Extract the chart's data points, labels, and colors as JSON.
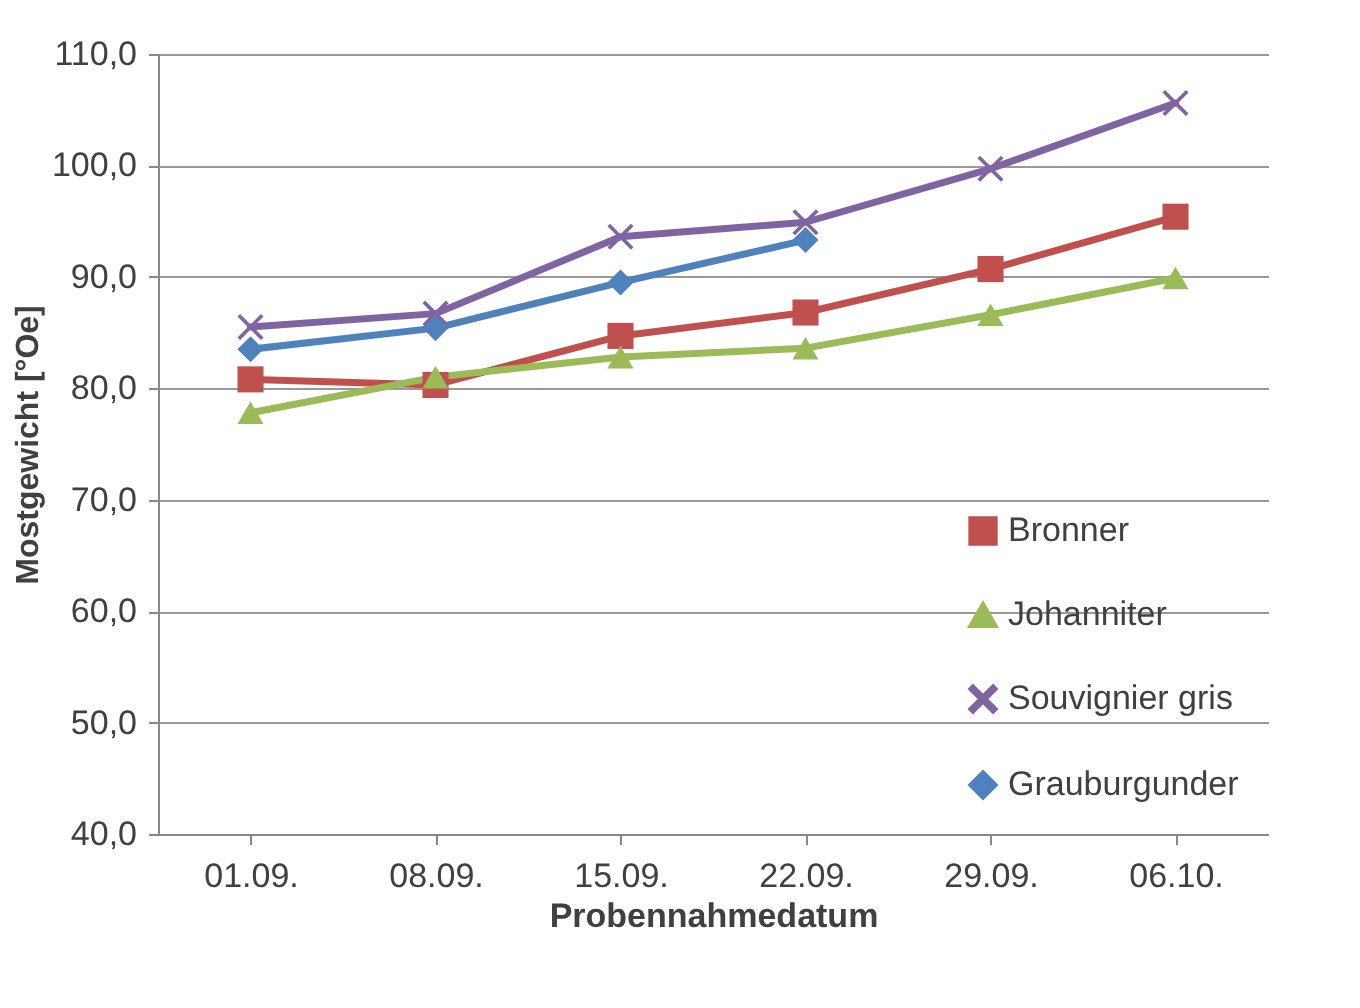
{
  "chart_data": {
    "type": "line",
    "xlabel": "Probennahmedatum",
    "ylabel": "Mostgewicht [°Oe]",
    "categories": [
      "01.09.",
      "08.09.",
      "15.09.",
      "22.09.",
      "29.09.",
      "06.10."
    ],
    "series": [
      {
        "name": "Bronner",
        "color": "#c0504d",
        "marker": "square",
        "values": [
          80.8,
          80.3,
          84.7,
          86.8,
          90.7,
          95.4
        ]
      },
      {
        "name": "Johanniter",
        "color": "#9bbb59",
        "marker": "triangle",
        "values": [
          77.8,
          81.0,
          82.8,
          83.6,
          86.6,
          89.9
        ]
      },
      {
        "name": "Souvignier gris",
        "color": "#8064a2",
        "marker": "cross",
        "values": [
          85.5,
          86.7,
          93.6,
          94.9,
          99.7,
          105.6
        ]
      },
      {
        "name": "Grauburgunder",
        "color": "#4f81bd",
        "marker": "diamond",
        "values": [
          83.5,
          85.4,
          89.5,
          93.3,
          null,
          null
        ]
      }
    ],
    "ylim": [
      40,
      110
    ],
    "yticks": [
      {
        "value": 40,
        "label": "40,0"
      },
      {
        "value": 50,
        "label": "50,0"
      },
      {
        "value": 60,
        "label": "60,0"
      },
      {
        "value": 70,
        "label": "70,0"
      },
      {
        "value": 80,
        "label": "80,0"
      },
      {
        "value": 90,
        "label": "90,0"
      },
      {
        "value": 100,
        "label": "100,0"
      },
      {
        "value": 110,
        "label": "110,0"
      }
    ],
    "grid": "y",
    "legend": "bottom right",
    "line_style": "solid"
  }
}
